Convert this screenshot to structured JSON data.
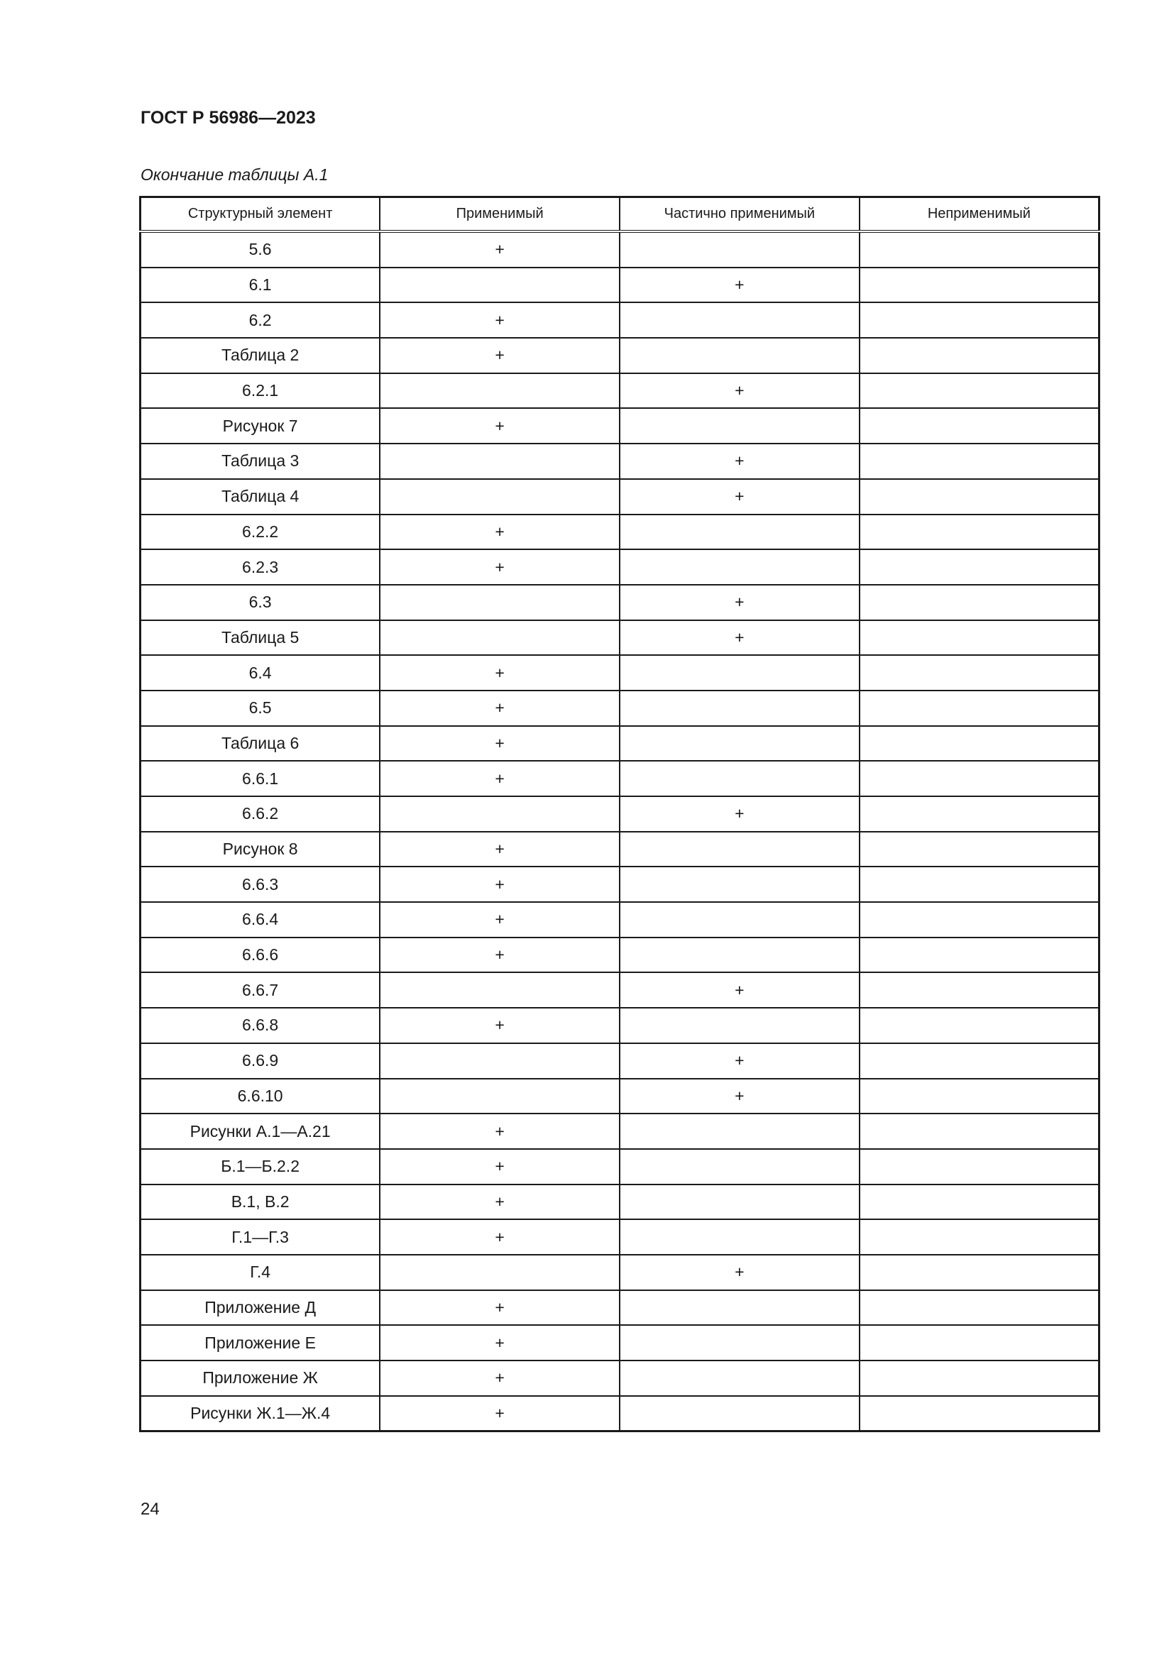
{
  "header": {
    "title": "ГОСТ Р 56986—2023"
  },
  "table": {
    "caption": "Окончание таблицы А.1",
    "columns": [
      "Структурный элемент",
      "Применимый",
      "Частично применимый",
      "Неприменимый"
    ],
    "rows": [
      [
        "5.6",
        "+",
        "",
        ""
      ],
      [
        "6.1",
        "",
        "+",
        ""
      ],
      [
        "6.2",
        "+",
        "",
        ""
      ],
      [
        "Таблица 2",
        "+",
        "",
        ""
      ],
      [
        "6.2.1",
        "",
        "+",
        ""
      ],
      [
        "Рисунок 7",
        "+",
        "",
        ""
      ],
      [
        "Таблица 3",
        "",
        "+",
        ""
      ],
      [
        "Таблица 4",
        "",
        "+",
        ""
      ],
      [
        "6.2.2",
        "+",
        "",
        ""
      ],
      [
        "6.2.3",
        "+",
        "",
        ""
      ],
      [
        "6.3",
        "",
        "+",
        ""
      ],
      [
        "Таблица 5",
        "",
        "+",
        ""
      ],
      [
        "6.4",
        "+",
        "",
        ""
      ],
      [
        "6.5",
        "+",
        "",
        ""
      ],
      [
        "Таблица 6",
        "+",
        "",
        ""
      ],
      [
        "6.6.1",
        "+",
        "",
        ""
      ],
      [
        "6.6.2",
        "",
        "+",
        ""
      ],
      [
        "Рисунок 8",
        "+",
        "",
        ""
      ],
      [
        "6.6.3",
        "+",
        "",
        ""
      ],
      [
        "6.6.4",
        "+",
        "",
        ""
      ],
      [
        "6.6.6",
        "+",
        "",
        ""
      ],
      [
        "6.6.7",
        "",
        "+",
        ""
      ],
      [
        "6.6.8",
        "+",
        "",
        ""
      ],
      [
        "6.6.9",
        "",
        "+",
        ""
      ],
      [
        "6.6.10",
        "",
        "+",
        ""
      ],
      [
        "Рисунки А.1—А.21",
        "+",
        "",
        ""
      ],
      [
        "Б.1—Б.2.2",
        "+",
        "",
        ""
      ],
      [
        "В.1, В.2",
        "+",
        "",
        ""
      ],
      [
        "Г.1—Г.3",
        "+",
        "",
        ""
      ],
      [
        "Г.4",
        "",
        "+",
        ""
      ],
      [
        "Приложение Д",
        "+",
        "",
        ""
      ],
      [
        "Приложение Е",
        "+",
        "",
        ""
      ],
      [
        "Приложение Ж",
        "+",
        "",
        ""
      ],
      [
        "Рисунки Ж.1—Ж.4",
        "+",
        "",
        ""
      ]
    ]
  },
  "footer": {
    "page_number": "24"
  }
}
